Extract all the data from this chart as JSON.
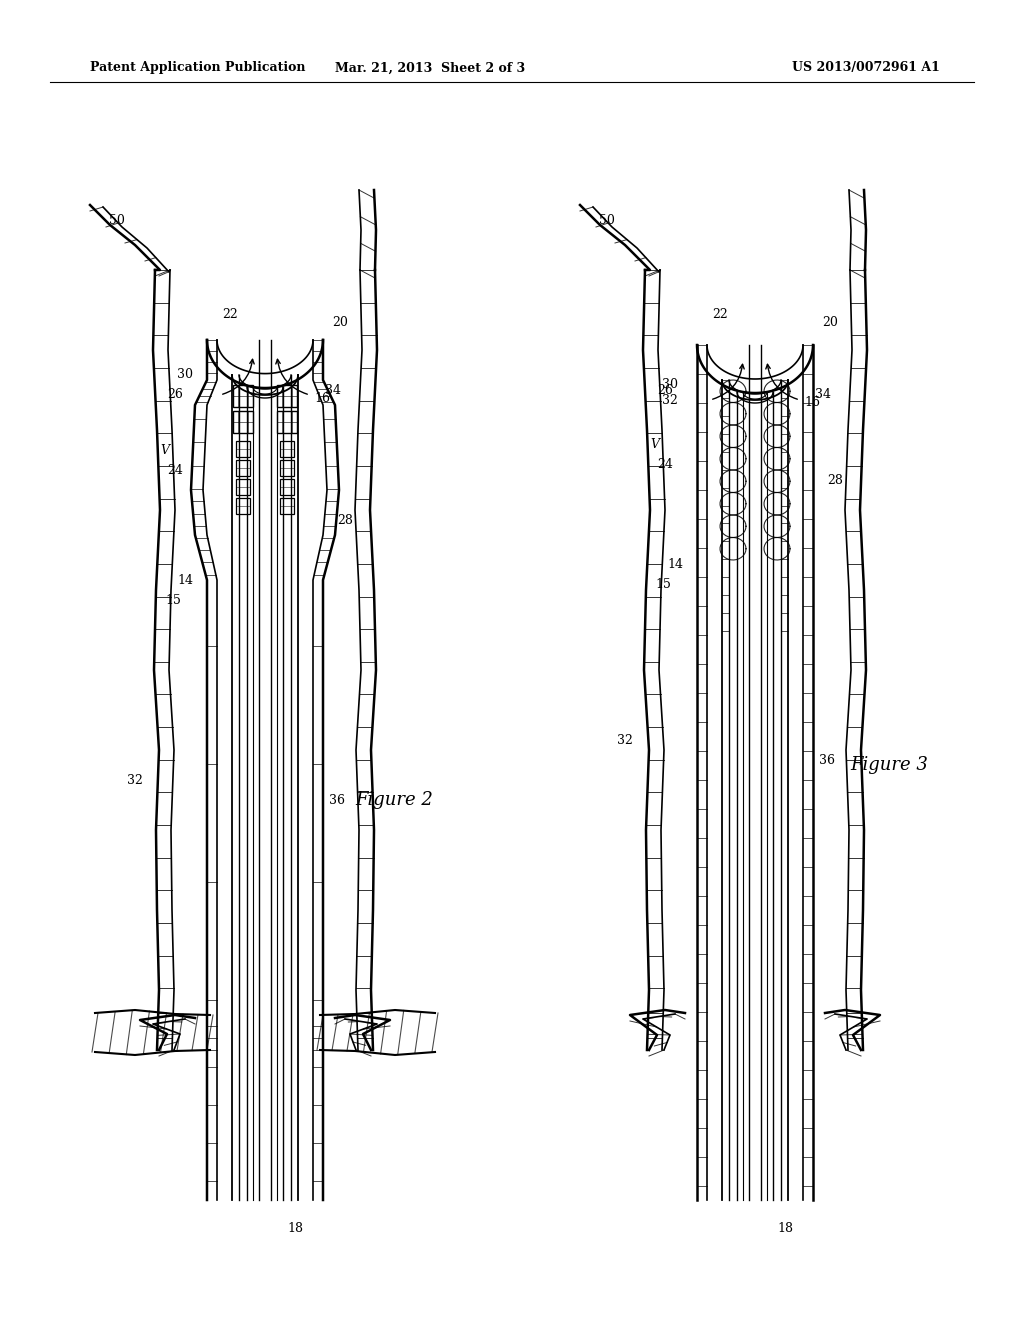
{
  "bg_color": "#ffffff",
  "header_left": "Patent Application Publication",
  "header_center": "Mar. 21, 2013  Sheet 2 of 3",
  "header_right": "US 2013/0072961 A1",
  "fig2_label": "Figure 2",
  "fig3_label": "Figure 3"
}
